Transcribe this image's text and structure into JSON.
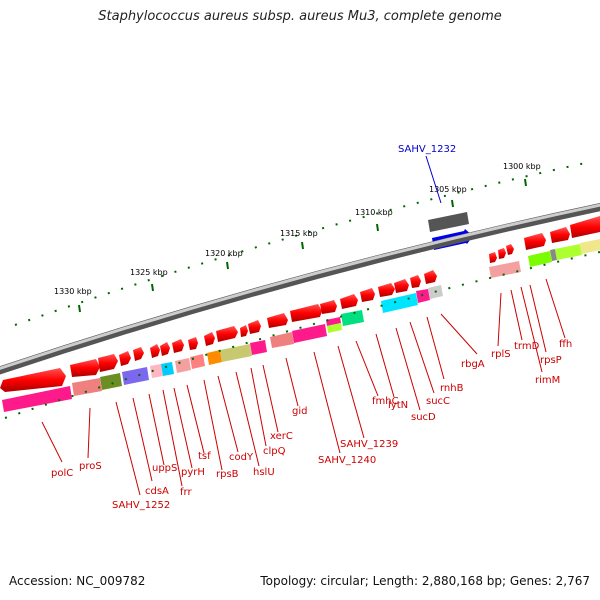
{
  "title": "Staphylococcus aureus subsp. aureus Mu3, complete genome",
  "footer": {
    "accession": "Accession: NC_009782",
    "summary": "Topology: circular; Length: 2,880,168 bp; Genes: 2,767"
  },
  "scale_labels": [
    "1330 kbp",
    "1325 kbp",
    "1320 kbp",
    "1315 kbp",
    "1310 kbp",
    "1305 kbp",
    "1300 kbp"
  ],
  "highlight_label": "SAHV_1232",
  "gene_labels": [
    "polC",
    "proS",
    "SAHV_1252",
    "cdsA",
    "uppS",
    "frr",
    "pyrH",
    "tsf",
    "rpsB",
    "codY",
    "hslU",
    "clpQ",
    "xerC",
    "gid",
    "SAHV_1240",
    "SAHV_1239",
    "fmhC",
    "lytN",
    "sucD",
    "sucC",
    "rnhB",
    "rbgA",
    "rplS",
    "trmD",
    "rimM",
    "rpsP",
    "ffh"
  ],
  "colors": {
    "gene_arrow": "#ff0000",
    "highlight_gene": "#0000ff",
    "backbone": "#888888",
    "tick": "#006600",
    "label": "#cc0000",
    "highlight_label": "#0000cc"
  }
}
